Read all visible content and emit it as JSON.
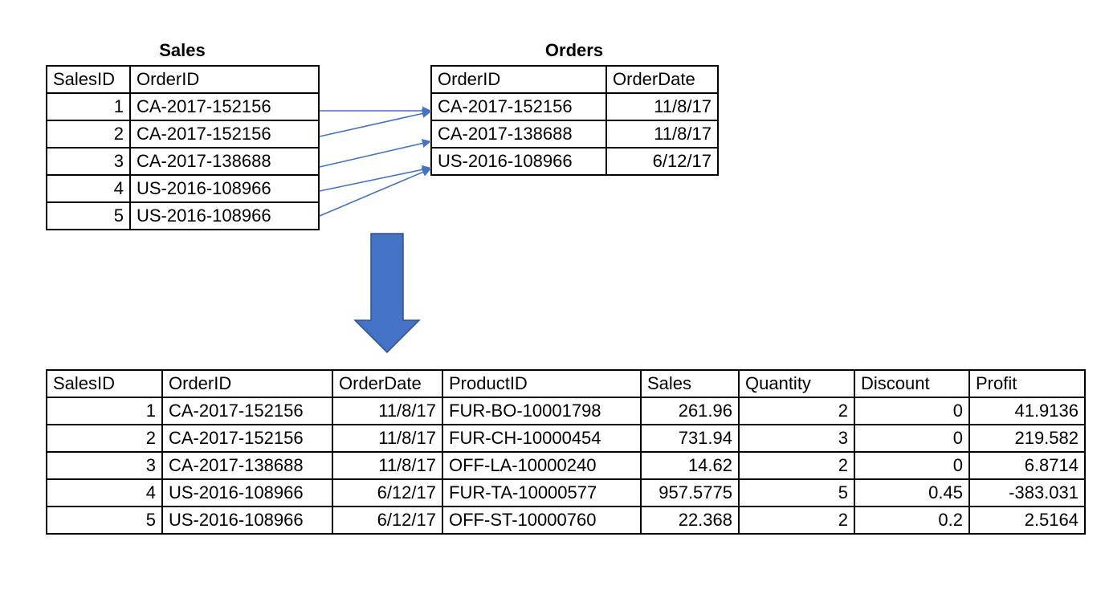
{
  "sales": {
    "title": "Sales",
    "headers": [
      "SalesID",
      "OrderID"
    ],
    "rows": [
      [
        "1",
        "CA-2017-152156"
      ],
      [
        "2",
        "CA-2017-152156"
      ],
      [
        "3",
        "CA-2017-138688"
      ],
      [
        "4",
        "US-2016-108966"
      ],
      [
        "5",
        "US-2016-108966"
      ]
    ]
  },
  "orders": {
    "title": "Orders",
    "headers": [
      "OrderID",
      "OrderDate"
    ],
    "rows": [
      [
        "CA-2017-152156",
        "11/8/17"
      ],
      [
        "CA-2017-138688",
        "11/8/17"
      ],
      [
        "US-2016-108966",
        "6/12/17"
      ]
    ]
  },
  "joined": {
    "headers": [
      "SalesID",
      "OrderID",
      "OrderDate",
      "ProductID",
      "Sales",
      "Quantity",
      "Discount",
      "Profit"
    ],
    "rows": [
      [
        "1",
        "CA-2017-152156",
        "11/8/17",
        "FUR-BO-10001798",
        "261.96",
        "2",
        "0",
        "41.9136"
      ],
      [
        "2",
        "CA-2017-152156",
        "11/8/17",
        "FUR-CH-10000454",
        "731.94",
        "3",
        "0",
        "219.582"
      ],
      [
        "3",
        "CA-2017-138688",
        "11/8/17",
        "OFF-LA-10000240",
        "14.62",
        "2",
        "0",
        "6.8714"
      ],
      [
        "4",
        "US-2016-108966",
        "6/12/17",
        "FUR-TA-10000577",
        "957.5775",
        "5",
        "0.45",
        "-383.031"
      ],
      [
        "5",
        "US-2016-108966",
        "6/12/17",
        "OFF-ST-10000760",
        "22.368",
        "2",
        "0.2",
        "2.5164"
      ]
    ]
  },
  "colors": {
    "arrow": "#4472C4",
    "border": "#000000"
  }
}
